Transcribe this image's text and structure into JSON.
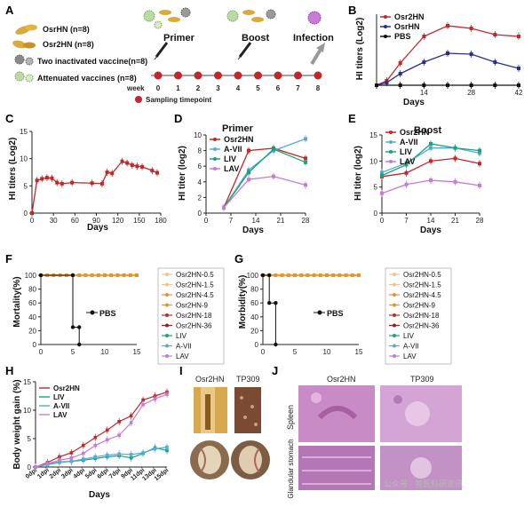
{
  "panels": {
    "A": {
      "letter": "A",
      "groups": [
        "OsrHN (n=8)",
        "Osr2HN (n=8)",
        "Two inactivated  vaccine(n=8)",
        "Attenuated vaccines (n=8)"
      ],
      "stages": [
        "Primer",
        "Boost",
        "Infection"
      ],
      "week_label": "week",
      "weeks": [
        "0",
        "1",
        "2",
        "3",
        "4",
        "5",
        "6",
        "7",
        "8"
      ],
      "sampling_label": "Sampling timepoint"
    },
    "B": {
      "letter": "B",
      "ylabel": "HI titers (Log2)",
      "xlabel": "Days"
    },
    "C": {
      "letter": "C",
      "ylabel": "HI titers (Log2)",
      "xlabel": "Days"
    },
    "D": {
      "letter": "D",
      "title": "Primer",
      "ylabel": "HI titer (log2)",
      "xlabel": "Days"
    },
    "E": {
      "letter": "E",
      "title": "Boost",
      "ylabel": "HI titer (log2)",
      "xlabel": "Days"
    },
    "F": {
      "letter": "F",
      "ylabel": "Mortality(%)",
      "annot": "PBS"
    },
    "G": {
      "letter": "G",
      "ylabel": "Morbidity(%)",
      "annot": "PBS"
    },
    "H": {
      "letter": "H",
      "ylabel": "Body weight gain (%)",
      "xlabel": "Days"
    },
    "I": {
      "letter": "I",
      "col1": "Osr2HN",
      "col2": "TP309"
    },
    "J": {
      "letter": "J",
      "col1": "Osr2HN",
      "col2": "TP309",
      "row1": "Spleen",
      "row2": "Glandular stomach"
    }
  },
  "watermark": "公众号 · 兽医科研资讯",
  "colors": {
    "red": "#c0282b",
    "darkred": "#9a1b1e",
    "blue": "#2a2f8f",
    "green": "#1aa37a",
    "skyblue": "#57a9d9",
    "violet": "#c77ad6",
    "orange": "#e8932a",
    "peach": "#f2c28f",
    "black": "#111111"
  },
  "chart_data": [
    {
      "panel": "B",
      "type": "line",
      "ylim": [
        0,
        8
      ],
      "xlim": [
        0,
        42
      ],
      "xticks": [
        14,
        28,
        42
      ],
      "series": [
        {
          "name": "Osr2HN",
          "color": "#c0282b",
          "x": [
            0,
            3,
            7,
            14,
            21,
            28,
            35,
            42
          ],
          "y": [
            0,
            0.5,
            2.5,
            5.5,
            6.7,
            6.4,
            5.7,
            5.5
          ]
        },
        {
          "name": "OsrHN",
          "color": "#2a2f8f",
          "x": [
            0,
            3,
            7,
            14,
            21,
            28,
            35,
            42
          ],
          "y": [
            0,
            0.3,
            1.3,
            2.6,
            3.6,
            3.5,
            2.6,
            1.9
          ]
        },
        {
          "name": "PBS",
          "color": "#111111",
          "x": [
            0,
            7,
            14,
            21,
            28,
            35,
            42
          ],
          "y": [
            0,
            0,
            0,
            0,
            0,
            0,
            0
          ]
        }
      ]
    },
    {
      "panel": "C",
      "type": "line",
      "ylim": [
        0,
        15
      ],
      "xlim": [
        0,
        180
      ],
      "xticks": [
        0,
        30,
        60,
        90,
        120,
        150,
        180
      ],
      "yticks": [
        0,
        5,
        10,
        15
      ],
      "series": [
        {
          "name": "",
          "color": "#c0282b",
          "x": [
            0,
            7,
            14,
            21,
            28,
            35,
            42,
            56,
            84,
            98,
            105,
            112,
            126,
            133,
            140,
            147,
            154,
            168,
            175
          ],
          "y": [
            0,
            6,
            6.3,
            6.5,
            6.4,
            5.6,
            5.4,
            5.6,
            5.5,
            5.4,
            7.5,
            7.3,
            9.5,
            9.2,
            8.8,
            8.6,
            8.5,
            7.8,
            7.4
          ]
        }
      ]
    },
    {
      "panel": "D",
      "type": "line",
      "ylim": [
        0,
        10
      ],
      "xlim": [
        0,
        28
      ],
      "xticks": [
        0,
        7,
        14,
        21,
        28
      ],
      "yticks": [
        0,
        2,
        4,
        6,
        8,
        10
      ],
      "series": [
        {
          "name": "Osr2HN",
          "color": "#c0282b",
          "x": [
            5,
            12,
            19,
            28
          ],
          "y": [
            0.7,
            8,
            8.3,
            7
          ]
        },
        {
          "name": "A-VII",
          "color": "#57a9d9",
          "x": [
            5,
            12,
            19,
            28
          ],
          "y": [
            0.7,
            5.5,
            8,
            9.5
          ]
        },
        {
          "name": "LIV",
          "color": "#1aa37a",
          "x": [
            5,
            12,
            19,
            28
          ],
          "y": [
            0.7,
            5.2,
            8.2,
            6.5
          ]
        },
        {
          "name": "LAV",
          "color": "#c77ad6",
          "x": [
            5,
            12,
            19,
            28
          ],
          "y": [
            0.7,
            4.3,
            4.7,
            3.6
          ]
        }
      ]
    },
    {
      "panel": "E",
      "type": "line",
      "ylim": [
        0,
        15
      ],
      "xlim": [
        0,
        28
      ],
      "xticks": [
        0,
        7,
        14,
        21,
        28
      ],
      "yticks": [
        0,
        5,
        10,
        15
      ],
      "series": [
        {
          "name": "Osr2HN",
          "color": "#c0282b",
          "x": [
            0,
            7,
            14,
            21,
            28
          ],
          "y": [
            7,
            7.7,
            10,
            10.5,
            9.5
          ]
        },
        {
          "name": "A-VII",
          "color": "#57a9d9",
          "x": [
            0,
            7,
            14,
            21,
            28
          ],
          "y": [
            7.8,
            9.6,
            12.5,
            12.5,
            11.5
          ]
        },
        {
          "name": "LIV",
          "color": "#1aa37a",
          "x": [
            0,
            7,
            14,
            21,
            28
          ],
          "y": [
            7.2,
            9.3,
            13.3,
            12.5,
            12
          ]
        },
        {
          "name": "LAV",
          "color": "#c77ad6",
          "x": [
            0,
            7,
            14,
            21,
            28
          ],
          "y": [
            3.8,
            5.5,
            6.3,
            6,
            5.3
          ]
        }
      ]
    },
    {
      "panel": "F",
      "type": "line",
      "ylim": [
        0,
        100
      ],
      "xlim": [
        0,
        15
      ],
      "xticks": [
        0,
        5,
        10,
        15
      ],
      "yticks": [
        0,
        20,
        40,
        60,
        80,
        100
      ],
      "series": [
        {
          "name": "Osr2HN-0.5",
          "color": "#f2c28f"
        },
        {
          "name": "Osr2HN-1.5",
          "color": "#f2c28f"
        },
        {
          "name": "Osr2HN-4.5",
          "color": "#e8932a"
        },
        {
          "name": "Osr2HN-9",
          "color": "#e8932a"
        },
        {
          "name": "Osr2HN-18",
          "color": "#c0282b"
        },
        {
          "name": "Osr2HN-36",
          "color": "#9a1b1e"
        },
        {
          "name": "LIV",
          "color": "#1aa37a"
        },
        {
          "name": "A-VII",
          "color": "#57a9d9"
        },
        {
          "name": "LAV",
          "color": "#c77ad6"
        }
      ],
      "all_vaccine_groups": {
        "x": [
          0,
          15
        ],
        "y": [
          100,
          100
        ]
      },
      "pbs": {
        "x": [
          0,
          5,
          5,
          6,
          6
        ],
        "y": [
          100,
          100,
          25,
          25,
          0
        ]
      }
    },
    {
      "panel": "G",
      "type": "line",
      "ylim": [
        0,
        100
      ],
      "xlim": [
        0,
        15
      ],
      "xticks": [
        0,
        5,
        10,
        15
      ],
      "yticks": [
        0,
        20,
        40,
        60,
        80,
        100
      ],
      "series": [
        {
          "name": "Osr2HN-0.5",
          "color": "#f2c28f"
        },
        {
          "name": "Osr2HN-1.5",
          "color": "#f2c28f"
        },
        {
          "name": "Osr2HN-4.5",
          "color": "#e8932a"
        },
        {
          "name": "Osr2HN-9",
          "color": "#e8932a"
        },
        {
          "name": "Osr2HN-18",
          "color": "#c0282b"
        },
        {
          "name": "Osr2HN-36",
          "color": "#9a1b1e"
        },
        {
          "name": "LIV",
          "color": "#1aa37a"
        },
        {
          "name": "A-VII",
          "color": "#57a9d9"
        },
        {
          "name": "LAV",
          "color": "#c77ad6"
        }
      ],
      "all_vaccine_groups": {
        "x": [
          0,
          15
        ],
        "y": [
          100,
          100
        ]
      },
      "pbs": {
        "x": [
          0,
          1,
          1,
          2,
          2
        ],
        "y": [
          100,
          100,
          60,
          60,
          0
        ]
      }
    },
    {
      "panel": "H",
      "type": "line",
      "ylim": [
        0,
        15
      ],
      "categories": [
        "0dpi",
        "1dpi",
        "2dpi",
        "3dpi",
        "4dpi",
        "5dpi",
        "6dpi",
        "7dpi",
        "9dpi",
        "11dpi",
        "13dpi",
        "15dpi"
      ],
      "yticks": [
        0,
        5,
        10,
        15
      ],
      "series": [
        {
          "name": "Osr2HN",
          "color": "#c0282b",
          "values": [
            0,
            0.8,
            1.8,
            2.5,
            3.8,
            5.2,
            6.5,
            8,
            9,
            11.8,
            12.5,
            13.2
          ]
        },
        {
          "name": "LIV",
          "color": "#1aa37a",
          "values": [
            0,
            0.5,
            0.9,
            1,
            1.2,
            1.5,
            1.8,
            2,
            1.6,
            2.4,
            3.4,
            2.9
          ]
        },
        {
          "name": "A-VII",
          "color": "#57a9d9",
          "values": [
            0,
            0.4,
            0.8,
            1,
            1.4,
            1.8,
            2.1,
            2.3,
            2.2,
            2.5,
            3.2,
            3.5
          ]
        },
        {
          "name": "LAV",
          "color": "#c77ad6",
          "values": [
            0,
            0.6,
            1.2,
            1.6,
            2.4,
            3.8,
            4.8,
            5.6,
            7.8,
            11,
            12,
            12.8
          ]
        }
      ]
    }
  ]
}
